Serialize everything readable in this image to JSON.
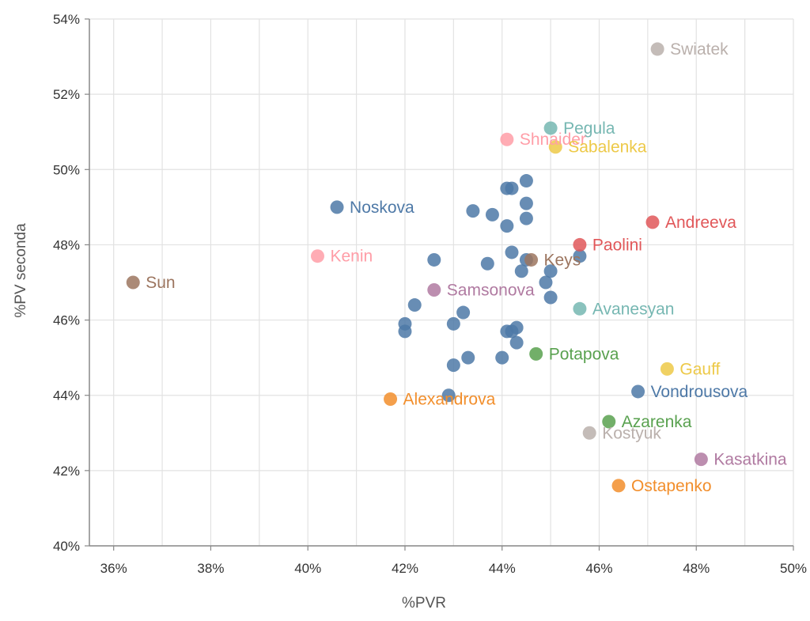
{
  "chart_data": {
    "type": "scatter",
    "title": "",
    "xlabel": "%PVR",
    "ylabel": "%PV seconda",
    "xlim": [
      35.5,
      50.0
    ],
    "ylim": [
      40,
      54
    ],
    "x_ticks": [
      36,
      38,
      40,
      42,
      44,
      46,
      48,
      50
    ],
    "x_tick_labels": [
      "36%",
      "38%",
      "40%",
      "42%",
      "44%",
      "46%",
      "48%",
      "50%"
    ],
    "y_ticks": [
      40,
      42,
      44,
      46,
      48,
      50,
      52,
      54
    ],
    "y_tick_labels": [
      "40%",
      "42%",
      "44%",
      "46%",
      "48%",
      "50%",
      "52%",
      "54%"
    ],
    "grid": true,
    "legend": "none",
    "labeled_points": [
      {
        "label": "Swiatek",
        "x": 47.2,
        "y": 53.2,
        "color": "#bab0ac"
      },
      {
        "label": "Pegula",
        "x": 45.0,
        "y": 51.1,
        "color": "#76b7b2"
      },
      {
        "label": "Shnaider",
        "x": 44.1,
        "y": 50.8,
        "color": "#ff9da7"
      },
      {
        "label": "Sabalenka",
        "x": 45.1,
        "y": 50.6,
        "color": "#edc948"
      },
      {
        "label": "Noskova",
        "x": 40.6,
        "y": 49.0,
        "color": "#4e79a7"
      },
      {
        "label": "Andreeva",
        "x": 47.1,
        "y": 48.6,
        "color": "#e15759"
      },
      {
        "label": "Paolini",
        "x": 45.6,
        "y": 48.0,
        "color": "#e15759"
      },
      {
        "label": "Kenin",
        "x": 40.2,
        "y": 47.7,
        "color": "#ff9da7"
      },
      {
        "label": "Keys",
        "x": 44.6,
        "y": 47.6,
        "color": "#9c755f"
      },
      {
        "label": "Sun",
        "x": 36.4,
        "y": 47.0,
        "color": "#9c755f"
      },
      {
        "label": "Samsonova",
        "x": 42.6,
        "y": 46.8,
        "color": "#b07aa1"
      },
      {
        "label": "Avanesyan",
        "x": 45.6,
        "y": 46.3,
        "color": "#76b7b2"
      },
      {
        "label": "Potapova",
        "x": 44.7,
        "y": 45.1,
        "color": "#59a14f"
      },
      {
        "label": "Gauff",
        "x": 47.4,
        "y": 44.7,
        "color": "#edc948"
      },
      {
        "label": "Vondrousova",
        "x": 46.8,
        "y": 44.1,
        "color": "#4e79a7"
      },
      {
        "label": "Alexandrova",
        "x": 41.7,
        "y": 43.9,
        "color": "#f28e2b"
      },
      {
        "label": "Azarenka",
        "x": 46.2,
        "y": 43.3,
        "color": "#59a14f"
      },
      {
        "label": "Kostyuk",
        "x": 45.8,
        "y": 43.0,
        "color": "#bab0ac"
      },
      {
        "label": "Kasatkina",
        "x": 48.1,
        "y": 42.3,
        "color": "#b07aa1"
      },
      {
        "label": "Ostapenko",
        "x": 46.4,
        "y": 41.6,
        "color": "#f28e2b"
      }
    ],
    "unlabeled_points": {
      "color": "#4e79a7",
      "points": [
        {
          "x": 44.5,
          "y": 49.7
        },
        {
          "x": 44.1,
          "y": 49.5
        },
        {
          "x": 44.2,
          "y": 49.5
        },
        {
          "x": 44.5,
          "y": 49.1
        },
        {
          "x": 43.4,
          "y": 48.9
        },
        {
          "x": 43.8,
          "y": 48.8
        },
        {
          "x": 44.5,
          "y": 48.7
        },
        {
          "x": 44.1,
          "y": 48.5
        },
        {
          "x": 44.2,
          "y": 47.8
        },
        {
          "x": 42.6,
          "y": 47.6
        },
        {
          "x": 43.7,
          "y": 47.5
        },
        {
          "x": 44.5,
          "y": 47.6
        },
        {
          "x": 45.6,
          "y": 47.7
        },
        {
          "x": 44.4,
          "y": 47.3
        },
        {
          "x": 45.0,
          "y": 47.3
        },
        {
          "x": 44.9,
          "y": 47.0
        },
        {
          "x": 45.0,
          "y": 46.6
        },
        {
          "x": 42.2,
          "y": 46.4
        },
        {
          "x": 43.2,
          "y": 46.2
        },
        {
          "x": 42.0,
          "y": 45.9
        },
        {
          "x": 43.0,
          "y": 45.9
        },
        {
          "x": 42.0,
          "y": 45.7
        },
        {
          "x": 44.1,
          "y": 45.7
        },
        {
          "x": 44.2,
          "y": 45.7
        },
        {
          "x": 44.3,
          "y": 45.8
        },
        {
          "x": 44.3,
          "y": 45.4
        },
        {
          "x": 43.3,
          "y": 45.0
        },
        {
          "x": 44.0,
          "y": 45.0
        },
        {
          "x": 43.0,
          "y": 44.8
        },
        {
          "x": 42.9,
          "y": 44.0
        }
      ]
    }
  }
}
